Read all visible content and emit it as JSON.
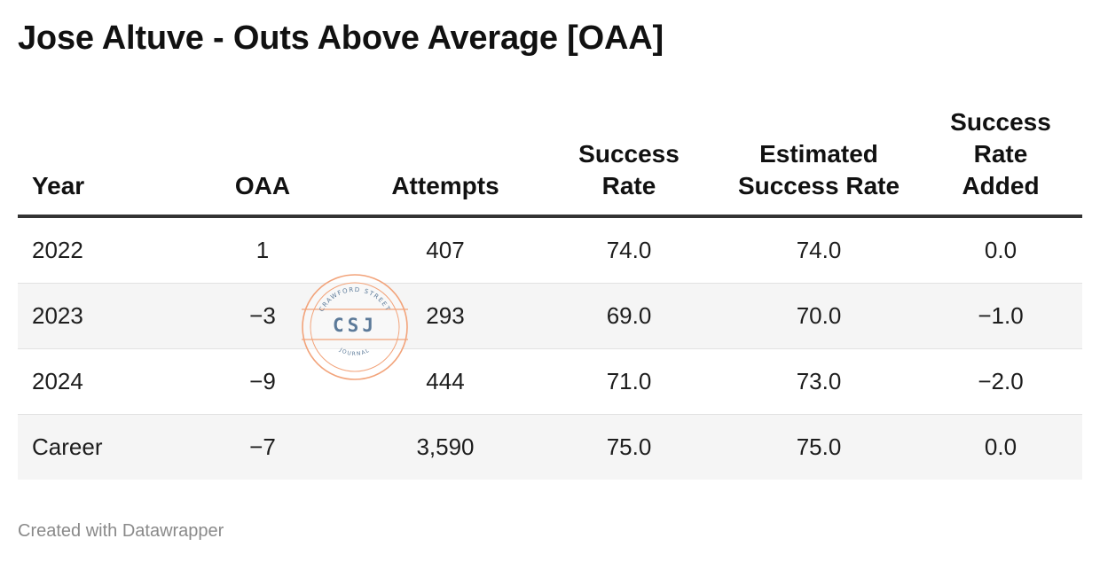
{
  "title": "Jose Altuve - Outs Above Average [OAA]",
  "footer": "Created with Datawrapper",
  "watermark": {
    "top_text": "CRAWFORD STREET",
    "center_text": "CSJ",
    "bottom_text": "JOURNAL",
    "ring_color": "#f2a37a",
    "text_color": "#5c7a99"
  },
  "colors": {
    "header_rule": "#333333",
    "row_stripe": "#f5f5f5",
    "row_divider": "#e2e2e2",
    "footer_text": "#8a8a8a"
  },
  "chart_data": {
    "type": "table",
    "columns": [
      "Year",
      "OAA",
      "Attempts",
      "Success Rate",
      "Estimated Success Rate",
      "Success Rate Added"
    ],
    "rows": [
      [
        "2022",
        "1",
        "407",
        "74.0",
        "74.0",
        "0.0"
      ],
      [
        "2023",
        "−3",
        "293",
        "69.0",
        "70.0",
        "−1.0"
      ],
      [
        "2024",
        "−9",
        "444",
        "71.0",
        "73.0",
        "−2.0"
      ],
      [
        "Career",
        "−7",
        "3,590",
        "75.0",
        "75.0",
        "0.0"
      ]
    ]
  }
}
